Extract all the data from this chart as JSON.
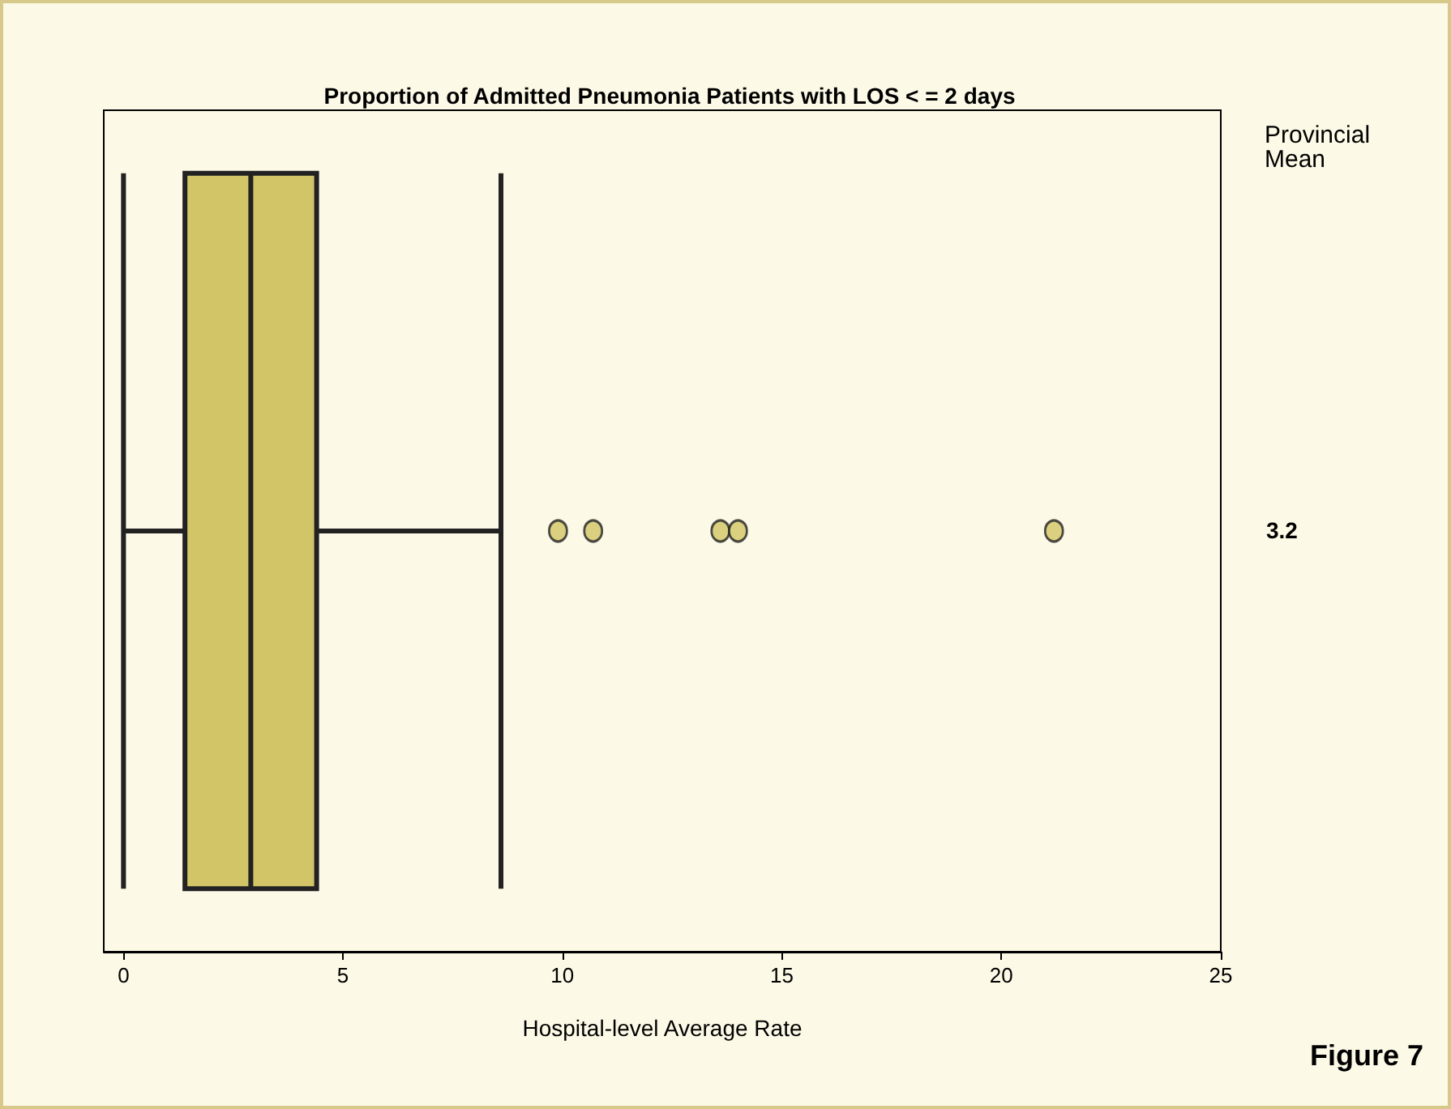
{
  "chart_data": {
    "type": "box",
    "title": "Proportion of Admitted Pneumonia Patients with LOS < = 2 days",
    "xlabel": "Hospital-level Average Rate",
    "orientation": "horizontal",
    "categories": [
      null
    ],
    "boxes": [
      {
        "low": 0,
        "q1": 1.4,
        "median": 2.9,
        "q3": 4.4,
        "high": 8.6,
        "outliers": [
          9.9,
          10.7,
          13.6,
          14.0,
          21.2
        ]
      }
    ],
    "color": "#d1c567",
    "marker": "circle",
    "xlim": [
      -0.45,
      25
    ],
    "xticks": [
      0,
      5,
      10,
      15,
      20,
      25
    ],
    "annotations": [
      "Provincial Mean",
      "3.2",
      "Figure 7"
    ]
  }
}
